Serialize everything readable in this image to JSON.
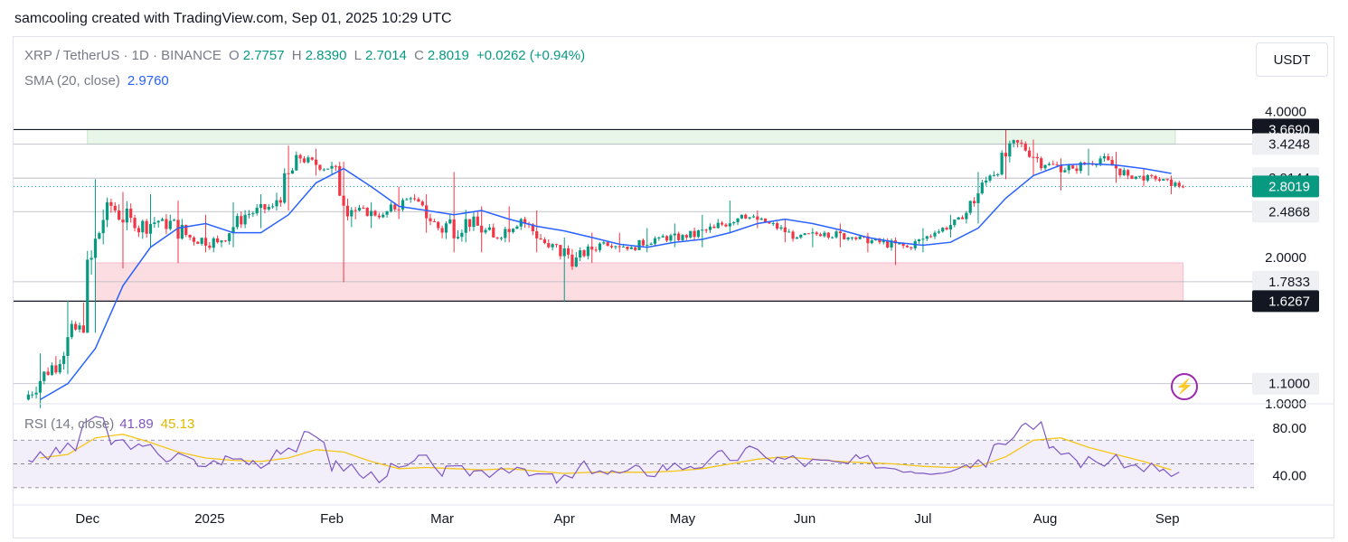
{
  "header": {
    "attribution": "samcooling created with TradingView.com, Sep 01, 2025 10:29 UTC"
  },
  "legend": {
    "symbol": "XRP / TetherUS · 1D · BINANCE",
    "open_label": "O",
    "open": "2.7757",
    "high_label": "H",
    "high": "2.8390",
    "low_label": "L",
    "low": "2.7014",
    "close_label": "C",
    "close": "2.8019",
    "change": "+0.0262 (+0.94%)",
    "sma_label": "SMA (20, close)",
    "sma_value": "2.9760",
    "rsi_label": "RSI (14, close)",
    "rsi_value": "41.89",
    "rsi_ma_value": "45.13"
  },
  "toolbar": {
    "currency": "USDT"
  },
  "colors": {
    "up": "#089981",
    "down": "#f23645",
    "sma": "#2962ff",
    "rsi": "#7e57c2",
    "rsi_ma": "#f5c518",
    "resistance_zone": "#e8f5e9",
    "support_zone": "#fcdde2"
  },
  "icons": {
    "alert": "lightning-icon"
  },
  "chart_data": [
    {
      "type": "candlestick",
      "title": "XRP / TetherUS · 1D · BINANCE",
      "ylim": [
        1.0,
        4.0
      ],
      "y_ticks": [
        "4.0000",
        "2.0000",
        "1.0000"
      ],
      "x_ticks": [
        "Dec",
        "2025",
        "Feb",
        "Mar",
        "Apr",
        "May",
        "Jun",
        "Jul",
        "Aug",
        "Sep"
      ],
      "x_range": [
        "2024-11-15",
        "2025-09-06"
      ],
      "price_labels": [
        {
          "value": 3.669,
          "text": "3.6690",
          "style": "dark"
        },
        {
          "value": 3.4248,
          "text": "3.4248",
          "style": "light"
        },
        {
          "value": 2.9144,
          "text": "2.9144",
          "style": "light"
        },
        {
          "value": 2.8019,
          "text": "2.8019",
          "style": "current"
        },
        {
          "value": 2.4868,
          "text": "2.4868",
          "style": "light"
        },
        {
          "value": 1.7833,
          "text": "1.7833",
          "style": "light"
        },
        {
          "value": 1.6267,
          "text": "1.6267",
          "style": "dark"
        },
        {
          "value": 1.1,
          "text": "1.1000",
          "style": "light"
        }
      ],
      "horizontal_lines": [
        3.669,
        3.4248,
        2.9144,
        2.4868,
        1.7833,
        1.6267,
        1.1,
        1.0
      ],
      "zones": [
        {
          "name": "resistance",
          "from": 3.4248,
          "to": 3.669,
          "start": "2024-12-01",
          "end": "2025-09-03"
        },
        {
          "name": "support",
          "from": 1.6267,
          "to": 1.95,
          "start": "2024-12-03",
          "end": "2025-09-05"
        }
      ],
      "current_price": 2.8019,
      "candles_weekly_approx": [
        {
          "t": "2024-11-16",
          "o": 1.02,
          "h": 1.27,
          "l": 0.98,
          "c": 1.2
        },
        {
          "t": "2024-11-23",
          "o": 1.2,
          "h": 1.63,
          "l": 1.15,
          "c": 1.45
        },
        {
          "t": "2024-11-30",
          "o": 1.45,
          "h": 2.9,
          "l": 1.4,
          "c": 2.6
        },
        {
          "t": "2024-12-07",
          "o": 2.6,
          "h": 2.73,
          "l": 1.9,
          "c": 2.3
        },
        {
          "t": "2024-12-14",
          "o": 2.3,
          "h": 2.7,
          "l": 2.1,
          "c": 2.4
        },
        {
          "t": "2024-12-21",
          "o": 2.4,
          "h": 2.62,
          "l": 1.95,
          "c": 2.2
        },
        {
          "t": "2024-12-28",
          "o": 2.2,
          "h": 2.45,
          "l": 2.05,
          "c": 2.15
        },
        {
          "t": "2025-01-04",
          "o": 2.15,
          "h": 2.6,
          "l": 2.1,
          "c": 2.45
        },
        {
          "t": "2025-01-11",
          "o": 2.45,
          "h": 2.7,
          "l": 2.3,
          "c": 2.55
        },
        {
          "t": "2025-01-18",
          "o": 2.55,
          "h": 3.4,
          "l": 2.5,
          "c": 3.2
        },
        {
          "t": "2025-01-25",
          "o": 3.2,
          "h": 3.35,
          "l": 2.95,
          "c": 3.05
        },
        {
          "t": "2025-02-01",
          "o": 3.05,
          "h": 3.15,
          "l": 1.78,
          "c": 2.5
        },
        {
          "t": "2025-02-08",
          "o": 2.5,
          "h": 2.6,
          "l": 2.3,
          "c": 2.45
        },
        {
          "t": "2025-02-15",
          "o": 2.45,
          "h": 2.8,
          "l": 2.4,
          "c": 2.65
        },
        {
          "t": "2025-02-22",
          "o": 2.65,
          "h": 2.7,
          "l": 2.25,
          "c": 2.3
        },
        {
          "t": "2025-03-01",
          "o": 2.3,
          "h": 3.0,
          "l": 2.05,
          "c": 2.4
        },
        {
          "t": "2025-03-08",
          "o": 2.4,
          "h": 2.55,
          "l": 2.05,
          "c": 2.2
        },
        {
          "t": "2025-03-15",
          "o": 2.2,
          "h": 2.55,
          "l": 2.15,
          "c": 2.4
        },
        {
          "t": "2025-03-22",
          "o": 2.4,
          "h": 2.5,
          "l": 2.05,
          "c": 2.1
        },
        {
          "t": "2025-03-29",
          "o": 2.1,
          "h": 2.2,
          "l": 1.62,
          "c": 2.0
        },
        {
          "t": "2025-04-05",
          "o": 2.0,
          "h": 2.25,
          "l": 1.95,
          "c": 2.15
        },
        {
          "t": "2025-04-12",
          "o": 2.15,
          "h": 2.25,
          "l": 2.05,
          "c": 2.1
        },
        {
          "t": "2025-04-19",
          "o": 2.1,
          "h": 2.3,
          "l": 2.05,
          "c": 2.2
        },
        {
          "t": "2025-04-26",
          "o": 2.2,
          "h": 2.35,
          "l": 2.1,
          "c": 2.2
        },
        {
          "t": "2025-05-03",
          "o": 2.2,
          "h": 2.45,
          "l": 2.1,
          "c": 2.3
        },
        {
          "t": "2025-05-10",
          "o": 2.3,
          "h": 2.62,
          "l": 2.25,
          "c": 2.45
        },
        {
          "t": "2025-05-17",
          "o": 2.45,
          "h": 2.5,
          "l": 2.3,
          "c": 2.35
        },
        {
          "t": "2025-05-24",
          "o": 2.35,
          "h": 2.4,
          "l": 2.15,
          "c": 2.2
        },
        {
          "t": "2025-05-31",
          "o": 2.2,
          "h": 2.3,
          "l": 2.1,
          "c": 2.25
        },
        {
          "t": "2025-06-07",
          "o": 2.25,
          "h": 2.35,
          "l": 2.1,
          "c": 2.2
        },
        {
          "t": "2025-06-14",
          "o": 2.2,
          "h": 2.25,
          "l": 2.05,
          "c": 2.15
        },
        {
          "t": "2025-06-21",
          "o": 2.15,
          "h": 2.2,
          "l": 1.93,
          "c": 2.1
        },
        {
          "t": "2025-06-28",
          "o": 2.1,
          "h": 2.3,
          "l": 2.05,
          "c": 2.25
        },
        {
          "t": "2025-07-05",
          "o": 2.25,
          "h": 2.45,
          "l": 2.2,
          "c": 2.4
        },
        {
          "t": "2025-07-12",
          "o": 2.4,
          "h": 3.0,
          "l": 2.35,
          "c": 2.95
        },
        {
          "t": "2025-07-19",
          "o": 2.95,
          "h": 3.66,
          "l": 2.9,
          "c": 3.45
        },
        {
          "t": "2025-07-26",
          "o": 3.45,
          "h": 3.5,
          "l": 2.95,
          "c": 3.1
        },
        {
          "t": "2025-08-02",
          "o": 3.1,
          "h": 3.2,
          "l": 2.75,
          "c": 3.05
        },
        {
          "t": "2025-08-09",
          "o": 3.05,
          "h": 3.35,
          "l": 2.95,
          "c": 3.2
        },
        {
          "t": "2025-08-16",
          "o": 3.2,
          "h": 3.3,
          "l": 2.85,
          "c": 2.95
        },
        {
          "t": "2025-08-23",
          "o": 2.95,
          "h": 3.05,
          "l": 2.8,
          "c": 2.9
        },
        {
          "t": "2025-08-30",
          "o": 2.9,
          "h": 2.95,
          "l": 2.7,
          "c": 2.8
        }
      ],
      "series": [
        {
          "name": "SMA (20, close)",
          "values_weekly_approx": [
            1.02,
            1.1,
            1.3,
            1.75,
            2.1,
            2.3,
            2.35,
            2.25,
            2.25,
            2.45,
            2.85,
            3.05,
            2.8,
            2.55,
            2.5,
            2.45,
            2.5,
            2.4,
            2.32,
            2.27,
            2.2,
            2.13,
            2.1,
            2.15,
            2.18,
            2.25,
            2.35,
            2.4,
            2.35,
            2.28,
            2.2,
            2.15,
            2.12,
            2.15,
            2.3,
            2.65,
            2.95,
            3.1,
            3.12,
            3.1,
            3.05,
            2.98
          ]
        }
      ]
    },
    {
      "type": "line",
      "title": "RSI (14, close)",
      "ylim": [
        20,
        90
      ],
      "y_ticks": [
        "80.00",
        "40.00"
      ],
      "bands": [
        30,
        50,
        70
      ],
      "series": [
        {
          "name": "RSI",
          "values_weekly_approx": [
            55,
            62,
            86,
            68,
            62,
            55,
            50,
            54,
            52,
            64,
            72,
            48,
            40,
            45,
            52,
            43,
            44,
            48,
            40,
            37,
            47,
            42,
            44,
            48,
            50,
            56,
            60,
            54,
            51,
            50,
            52,
            48,
            46,
            47,
            52,
            72,
            85,
            60,
            52,
            52,
            48,
            42
          ]
        },
        {
          "name": "RSI MA",
          "values_weekly_approx": [
            55,
            58,
            72,
            75,
            68,
            60,
            55,
            53,
            52,
            55,
            62,
            60,
            52,
            46,
            47,
            46,
            45,
            46,
            44,
            42,
            43,
            43,
            43,
            44,
            46,
            50,
            54,
            56,
            54,
            52,
            51,
            50,
            48,
            47,
            48,
            56,
            70,
            72,
            64,
            58,
            52,
            45
          ]
        }
      ]
    }
  ]
}
